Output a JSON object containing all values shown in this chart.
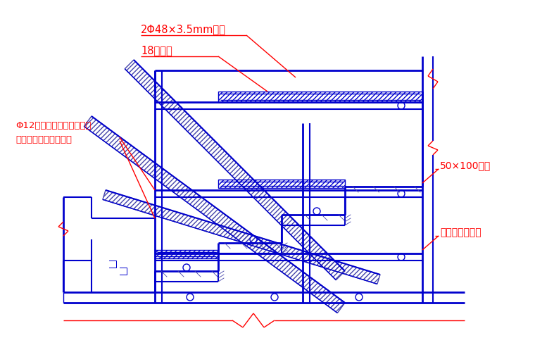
{
  "bg_color": "#ffffff",
  "blue": "#0000cd",
  "red": "#ff0000",
  "hatch_color": "#4444aa",
  "annotations": {
    "steel_pipe": "2Φ48×3.5mm钔管",
    "layer_board": "18厚层板",
    "bolt_line1": "Φ12对拉螺杠，间隔一步设",
    "bolt_line2": "置一道，横向设置两遠",
    "wood": "50×100木敦",
    "scaffold": "钔管脚手架支撑"
  }
}
